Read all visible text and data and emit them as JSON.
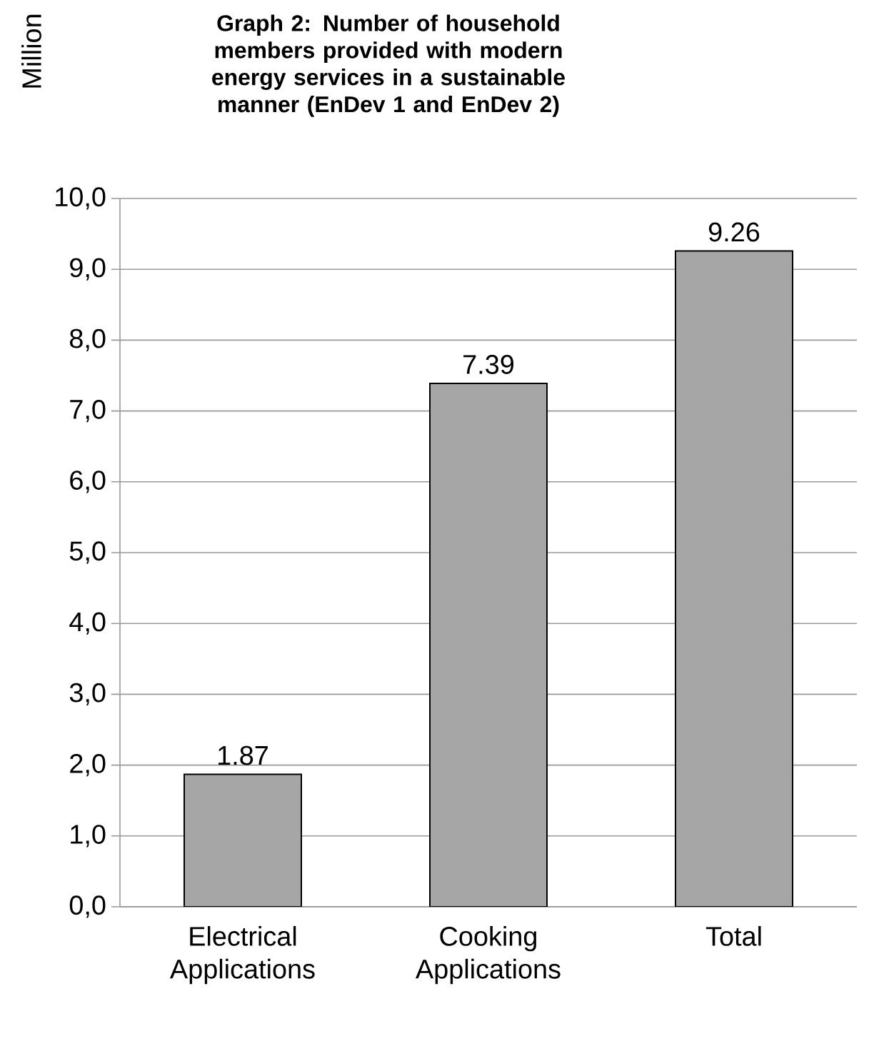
{
  "chart_data": {
    "type": "bar",
    "title": "Graph 2: Number of household members provided with modern energy services in a sustainable manner (EnDev 1 and EnDev 2)",
    "ylabel": "Million",
    "categories": [
      "Electrical Applications",
      "Cooking Applications",
      "Total"
    ],
    "values": [
      1.87,
      7.39,
      9.26
    ],
    "color": "#a6a6a6",
    "data_labels": true,
    "ylim": [
      0,
      10
    ],
    "yticks": [
      {
        "value": 0,
        "label": "0,0"
      },
      {
        "value": 1,
        "label": "1,0"
      },
      {
        "value": 2,
        "label": "2,0"
      },
      {
        "value": 3,
        "label": "3,0"
      },
      {
        "value": 4,
        "label": "4,0"
      },
      {
        "value": 5,
        "label": "5,0"
      },
      {
        "value": 6,
        "label": "6,0"
      },
      {
        "value": 7,
        "label": "7,0"
      },
      {
        "value": 8,
        "label": "8,0"
      },
      {
        "value": 9,
        "label": "9,0"
      },
      {
        "value": 10,
        "label": "10,0"
      }
    ],
    "grid": "y"
  }
}
